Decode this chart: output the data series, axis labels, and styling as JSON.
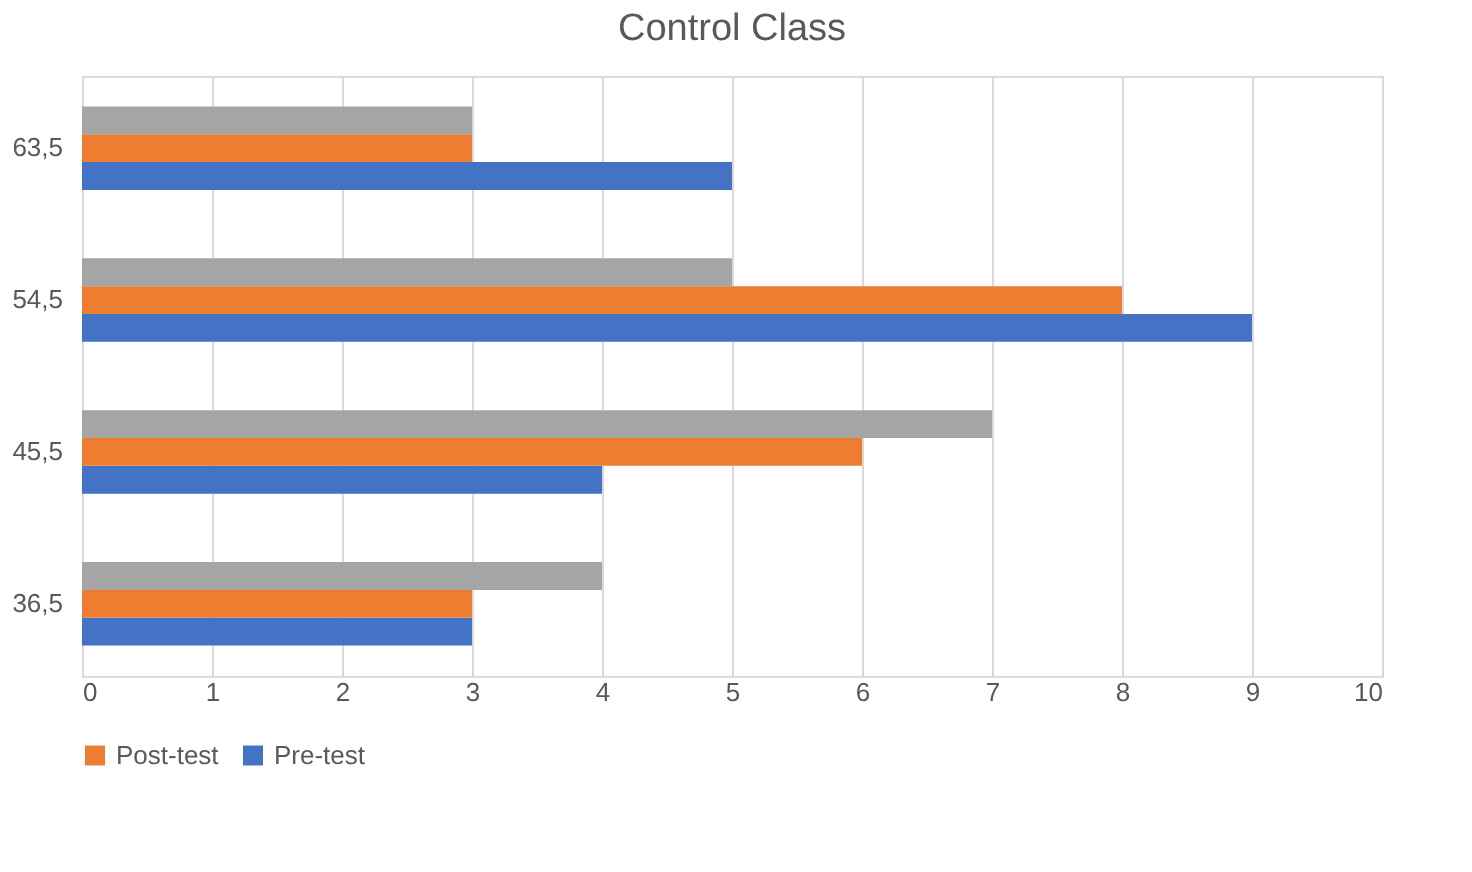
{
  "chart_data": {
    "type": "bar",
    "orientation": "horizontal",
    "title": "Control Class",
    "categories": [
      "63,5",
      "54,5",
      "45,5",
      "36,5"
    ],
    "series": [
      {
        "name": "Pre-test",
        "color": "#4472c4",
        "values": [
          5,
          9,
          4,
          3
        ]
      },
      {
        "name": "Post-test",
        "color": "#ed7d31",
        "values": [
          3,
          8,
          6,
          3
        ]
      },
      {
        "color": "#a5a5a5",
        "values": [
          3,
          5,
          7,
          4
        ]
      }
    ],
    "xlim": [
      0,
      10
    ],
    "xticks": [
      0,
      1,
      2,
      3,
      4,
      5,
      6,
      7,
      8,
      9,
      10
    ],
    "grid": "x",
    "legend": "bottom"
  }
}
